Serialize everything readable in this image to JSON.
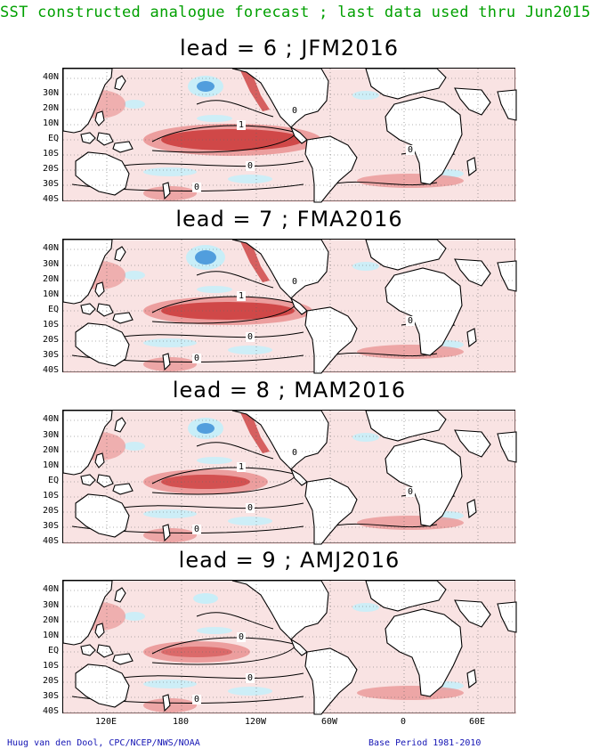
{
  "header": {
    "title": "SST constructed analogue forecast ; last data used thru Jun2015"
  },
  "panels": [
    {
      "title": "lead = 6 ; JFM2016",
      "contour_labels": [
        "1",
        "0",
        "0",
        "0",
        "0"
      ]
    },
    {
      "title": "lead = 7 ; FMA2016",
      "contour_labels": [
        "1",
        "0",
        "0",
        "0",
        "0"
      ]
    },
    {
      "title": "lead = 8 ; MAM2016",
      "contour_labels": [
        "1",
        "0",
        "0",
        "0",
        "0"
      ]
    },
    {
      "title": "lead = 9 ; AMJ2016",
      "contour_labels": [
        "0",
        "0",
        "0"
      ]
    }
  ],
  "lat_labels": [
    "40N",
    "30N",
    "20N",
    "10N",
    "EQ",
    "10S",
    "20S",
    "30S",
    "40S"
  ],
  "lon_labels": [
    "120E",
    "180",
    "120W",
    "60W",
    "0",
    "60E"
  ],
  "footer": {
    "credit": "Huug van den Dool, CPC/NCEP/NWS/NOAA",
    "base_period": "Base Period 1981-2010"
  },
  "colors": {
    "header": "#00a000",
    "footer": "#1414b4",
    "warm_strong": "#d04848",
    "warm_medium": "#e88c8c",
    "warm_light": "#f7d0d0",
    "cool_light": "#c8eef8",
    "cool_strong": "#3c8fd8",
    "land": "#ffffff"
  }
}
